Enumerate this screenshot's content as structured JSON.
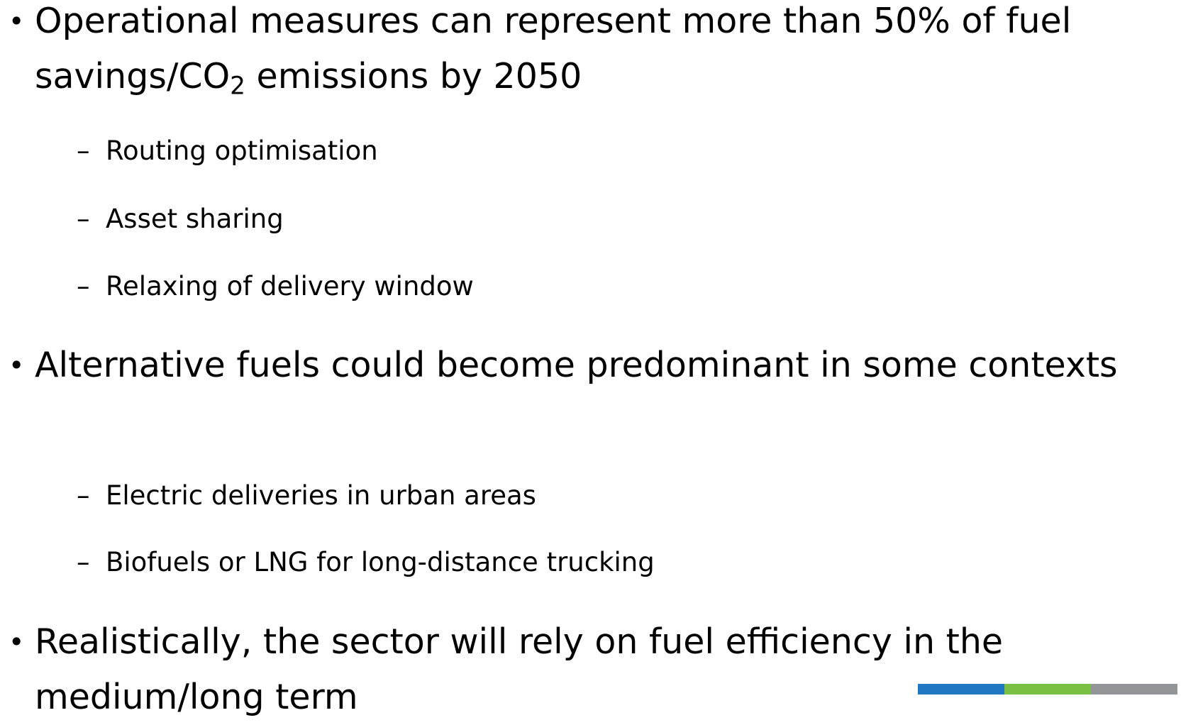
{
  "bullets": [
    {
      "text_before": "Operational measures can represent more than 50% of fuel savings/CO",
      "subscript": "2",
      "text_after": " emissions by 2050",
      "subitems": [
        "Routing optimisation",
        "Asset sharing",
        "Relaxing of delivery window"
      ]
    },
    {
      "text": "Alternative fuels could become predominant in some contexts",
      "subitems": [
        "Electric deliveries in urban areas",
        "Biofuels or LNG for long-distance trucking"
      ]
    },
    {
      "text": "Realistically, the sector will rely on fuel efficiency in the medium/long term",
      "subitems": []
    }
  ]
}
